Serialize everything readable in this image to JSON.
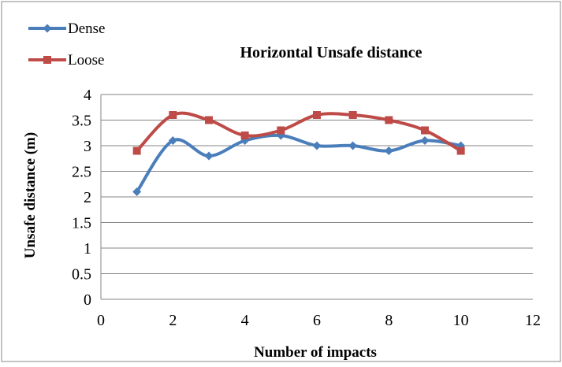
{
  "chart_data": {
    "type": "line",
    "title": "Horizontal Unsafe distance",
    "xlabel": "Number of impacts",
    "ylabel": "Unsafe distance (m)",
    "xlim": [
      0,
      12
    ],
    "ylim": [
      0,
      4
    ],
    "xticks": [
      "0",
      "2",
      "4",
      "6",
      "8",
      "10",
      "12"
    ],
    "yticks": [
      "0",
      "0.5",
      "1",
      "1.5",
      "2",
      "2.5",
      "3",
      "3.5",
      "4"
    ],
    "grid": "horizontal",
    "legend_position": "top-left",
    "series": [
      {
        "name": "Dense",
        "color": "#4A7EBB",
        "marker": "diamond",
        "x": [
          1,
          2,
          3,
          4,
          5,
          6,
          7,
          8,
          9,
          10
        ],
        "y": [
          2.1,
          3.1,
          2.8,
          3.1,
          3.2,
          3.0,
          3.0,
          2.9,
          3.1,
          3.0
        ]
      },
      {
        "name": "Loose",
        "color": "#BE4B48",
        "marker": "square",
        "x": [
          1,
          2,
          3,
          4,
          5,
          6,
          7,
          8,
          9,
          10
        ],
        "y": [
          2.9,
          3.6,
          3.5,
          3.2,
          3.3,
          3.6,
          3.6,
          3.5,
          3.3,
          2.9
        ]
      }
    ]
  }
}
